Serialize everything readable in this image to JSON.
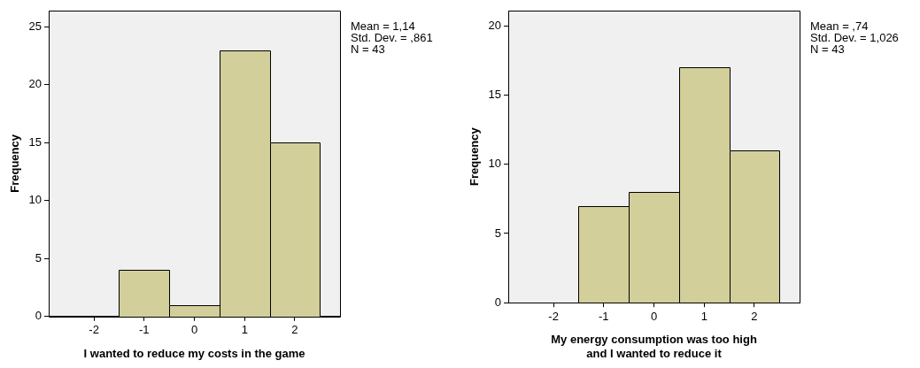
{
  "chart_data": [
    {
      "type": "histogram",
      "xlabel": "I wanted to reduce my costs in the game",
      "ylabel": "Frequency",
      "bins": [
        -2.5,
        -1.5,
        -0.5,
        0.5,
        1.5,
        2.5
      ],
      "values": [
        0,
        4,
        1,
        23,
        15
      ],
      "color": "#d3cf9a",
      "xlim": [
        -2.9,
        2.9
      ],
      "xticks": [
        -2,
        -1,
        0,
        1,
        2
      ],
      "ylim": [
        0,
        26.4
      ],
      "yticks": [
        0,
        5,
        10,
        15,
        20,
        25
      ],
      "grid": false,
      "annotations": [
        "Mean = 1,14",
        "Std. Dev. = ,861",
        "N = 43"
      ]
    },
    {
      "type": "histogram",
      "xlabel": "My energy consumption was too high\nand I wanted to reduce it",
      "ylabel": "Frequency",
      "bins": [
        -2.5,
        -1.5,
        -0.5,
        0.5,
        1.5,
        2.5
      ],
      "values": [
        0,
        7,
        8,
        17,
        11
      ],
      "color": "#d3cf9a",
      "xlim": [
        -2.9,
        2.9
      ],
      "xticks": [
        -2,
        -1,
        0,
        1,
        2
      ],
      "ylim": [
        0,
        21.1
      ],
      "yticks": [
        0,
        5,
        10,
        15,
        20
      ],
      "grid": false,
      "annotations": [
        "Mean = ,74",
        "Std. Dev. = 1,026",
        "N = 43"
      ]
    }
  ]
}
